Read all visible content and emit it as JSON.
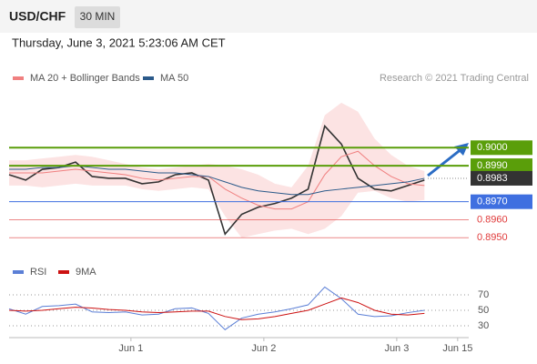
{
  "header": {
    "symbol": "USD/CHF",
    "interval": "30 MIN",
    "datetime": "Thursday, June 3, 2021 5:23:06 AM CET",
    "credit": "Research © 2021 Trading Central"
  },
  "chart_data": [
    {
      "type": "line",
      "x": [
        -22,
        -19,
        -16,
        -13,
        -10,
        -7,
        -4,
        -1,
        2,
        5,
        8,
        11,
        14,
        17,
        20,
        23,
        26,
        29,
        32,
        35,
        38,
        41,
        44,
        47,
        50,
        53
      ],
      "xlim": [
        -22,
        61
      ],
      "ylim": [
        0.8938,
        0.9034
      ],
      "series": [
        {
          "color": "#333333",
          "values": [
            0.8985,
            0.8982,
            0.8988,
            0.8989,
            0.8992,
            0.8984,
            0.8983,
            0.8983,
            0.898,
            0.8981,
            0.8985,
            0.8986,
            0.8982,
            0.8952,
            0.8963,
            0.8967,
            0.8969,
            0.8972,
            0.8977,
            0.9012,
            0.9002,
            0.8983,
            0.8977,
            0.8976,
            0.8979,
            0.8982
          ]
        },
        {
          "name": "MA 20 + Bollinger Bands",
          "color": "#f08080",
          "values": [
            0.8986,
            0.8986,
            0.8986,
            0.8987,
            0.8988,
            0.8987,
            0.8986,
            0.8985,
            0.8983,
            0.8982,
            0.8983,
            0.8984,
            0.8984,
            0.8977,
            0.8972,
            0.8968,
            0.8966,
            0.8966,
            0.897,
            0.8985,
            0.8995,
            0.8998,
            0.899,
            0.8984,
            0.898,
            0.8979
          ],
          "upper": [
            0.8993,
            0.8993,
            0.8994,
            0.8995,
            0.8996,
            0.8995,
            0.8993,
            0.8991,
            0.8989,
            0.8988,
            0.8989,
            0.899,
            0.8991,
            0.899,
            0.8988,
            0.8985,
            0.898,
            0.8978,
            0.899,
            0.9018,
            0.9025,
            0.902,
            0.9005,
            0.8996,
            0.899,
            0.8987
          ],
          "lower": [
            0.8979,
            0.8979,
            0.8978,
            0.8979,
            0.898,
            0.8979,
            0.8979,
            0.8979,
            0.8977,
            0.8976,
            0.8977,
            0.8978,
            0.8977,
            0.8962,
            0.895,
            0.8952,
            0.8954,
            0.8955,
            0.8952,
            0.8955,
            0.8962,
            0.8975,
            0.8976,
            0.8972,
            0.897,
            0.8971
          ]
        },
        {
          "name": "MA 50",
          "color": "#2b5a8a",
          "values": [
            0.8988,
            0.8988,
            0.8989,
            0.8989,
            0.899,
            0.8989,
            0.8988,
            0.8988,
            0.8987,
            0.8986,
            0.8986,
            0.8985,
            0.8984,
            0.8981,
            0.8978,
            0.8976,
            0.8975,
            0.8974,
            0.8974,
            0.8976,
            0.8977,
            0.8978,
            0.8979,
            0.898,
            0.8981,
            0.8983
          ]
        }
      ],
      "levels": [
        {
          "value": 0.9,
          "label": "0.9000",
          "color": "#5a9e0a",
          "boxed": true
        },
        {
          "value": 0.899,
          "label": "0.8990",
          "color": "#5a9e0a",
          "boxed": true
        },
        {
          "value": 0.8983,
          "label": "0.8983",
          "color": "#333333",
          "boxed": true
        },
        {
          "value": 0.897,
          "label": "0.8970",
          "color": "#3f6fe0",
          "boxed": true
        },
        {
          "value": 0.896,
          "label": "0.8960",
          "color": "#e03a3a",
          "boxed": false
        },
        {
          "value": 0.895,
          "label": "0.8950",
          "color": "#e03a3a",
          "boxed": false
        }
      ]
    },
    {
      "type": "line",
      "x": [
        -22,
        -19,
        -16,
        -13,
        -10,
        -7,
        -4,
        -1,
        2,
        5,
        8,
        11,
        14,
        17,
        20,
        23,
        26,
        29,
        32,
        35,
        38,
        41,
        44,
        47,
        50,
        53
      ],
      "xlim": [
        -22,
        61
      ],
      "xticks": [
        {
          "value": 0,
          "label": "Jun 1"
        },
        {
          "value": 24,
          "label": "Jun 2"
        },
        {
          "value": 48,
          "label": "Jun 3"
        },
        {
          "value": 59,
          "label": "Jun 15"
        }
      ],
      "ylim": [
        16,
        84
      ],
      "yticks": [
        30,
        50,
        70
      ],
      "series": [
        {
          "name": "RSI",
          "color": "#5b7fd6",
          "values": [
            52,
            45,
            55,
            56,
            58,
            48,
            47,
            48,
            44,
            45,
            52,
            53,
            46,
            25,
            40,
            45,
            48,
            52,
            57,
            80,
            65,
            45,
            42,
            43,
            47,
            50
          ]
        },
        {
          "name": "9MA",
          "color": "#cc1111",
          "values": [
            50,
            49,
            50,
            52,
            54,
            53,
            51,
            50,
            48,
            47,
            48,
            49,
            49,
            42,
            38,
            39,
            42,
            46,
            50,
            58,
            66,
            60,
            50,
            45,
            44,
            46
          ]
        }
      ]
    }
  ]
}
